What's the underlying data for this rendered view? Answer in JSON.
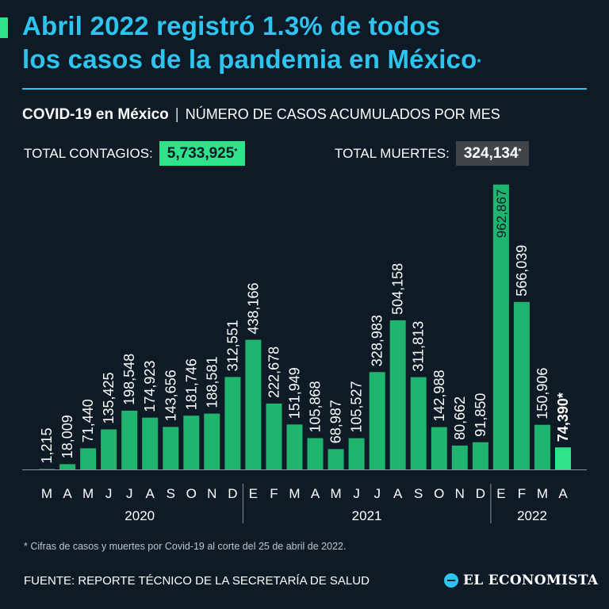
{
  "headline": {
    "line1": "Abril 2022 registró 1.3% de todos",
    "line2": "los casos de la pandemia en México",
    "mark": "*"
  },
  "subtitle": {
    "strong": "COVID-19 en México",
    "separator": "|",
    "desc": "NÚMERO DE CASOS ACUMULADOS POR MES"
  },
  "totals": {
    "contagios_label": "TOTAL CONTAGIOS:",
    "contagios_value": "5,733,925",
    "muertes_label": "TOTAL MUERTES:",
    "muertes_value": "324,134",
    "mark": "*"
  },
  "chart_data": {
    "type": "bar",
    "title": "NÚMERO DE CASOS ACUMULADOS POR MES",
    "categories": [
      "M",
      "A",
      "M",
      "J",
      "J",
      "A",
      "S",
      "O",
      "N",
      "D",
      "E",
      "F",
      "M",
      "A",
      "M",
      "J",
      "J",
      "A",
      "S",
      "O",
      "N",
      "D",
      "E",
      "F",
      "M",
      "A"
    ],
    "values": [
      1215,
      18009,
      71440,
      135425,
      198548,
      174923,
      143656,
      181746,
      188581,
      312551,
      438166,
      222678,
      151949,
      105868,
      68987,
      105527,
      328983,
      504158,
      311813,
      142988,
      80662,
      91850,
      962867,
      566039,
      150906,
      74390
    ],
    "labels": [
      "1,215",
      "18,009",
      "71,440",
      "135,425",
      "198,548",
      "174,923",
      "143,656",
      "181,746",
      "188,581",
      "312,551",
      "438,166",
      "222,678",
      "151,949",
      "105,868",
      "68,987",
      "105,527",
      "328,983",
      "504,158",
      "311,813",
      "142,988",
      "80,662",
      "91,850",
      "962,867",
      "566,039",
      "150,906",
      "74,390*"
    ],
    "highlight_index": 25,
    "year_groups": [
      {
        "label": "2020",
        "start": 0,
        "end": 9
      },
      {
        "label": "2021",
        "start": 10,
        "end": 21
      },
      {
        "label": "2022",
        "start": 22,
        "end": 25
      }
    ],
    "ylim": [
      0,
      970000
    ],
    "grid": false,
    "colors": {
      "bar": "#1fb56f",
      "highlight": "#2fe38a",
      "axis": "#8a949c"
    }
  },
  "footnote": "* Cifras de casos y muertes por Covid-19 al corte del 25 de abril de 2022.",
  "source": "FUENTE: REPORTE TÉCNICO DE LA SECRETARÍA DE SALUD",
  "brand": "EL ECONOMISTA"
}
